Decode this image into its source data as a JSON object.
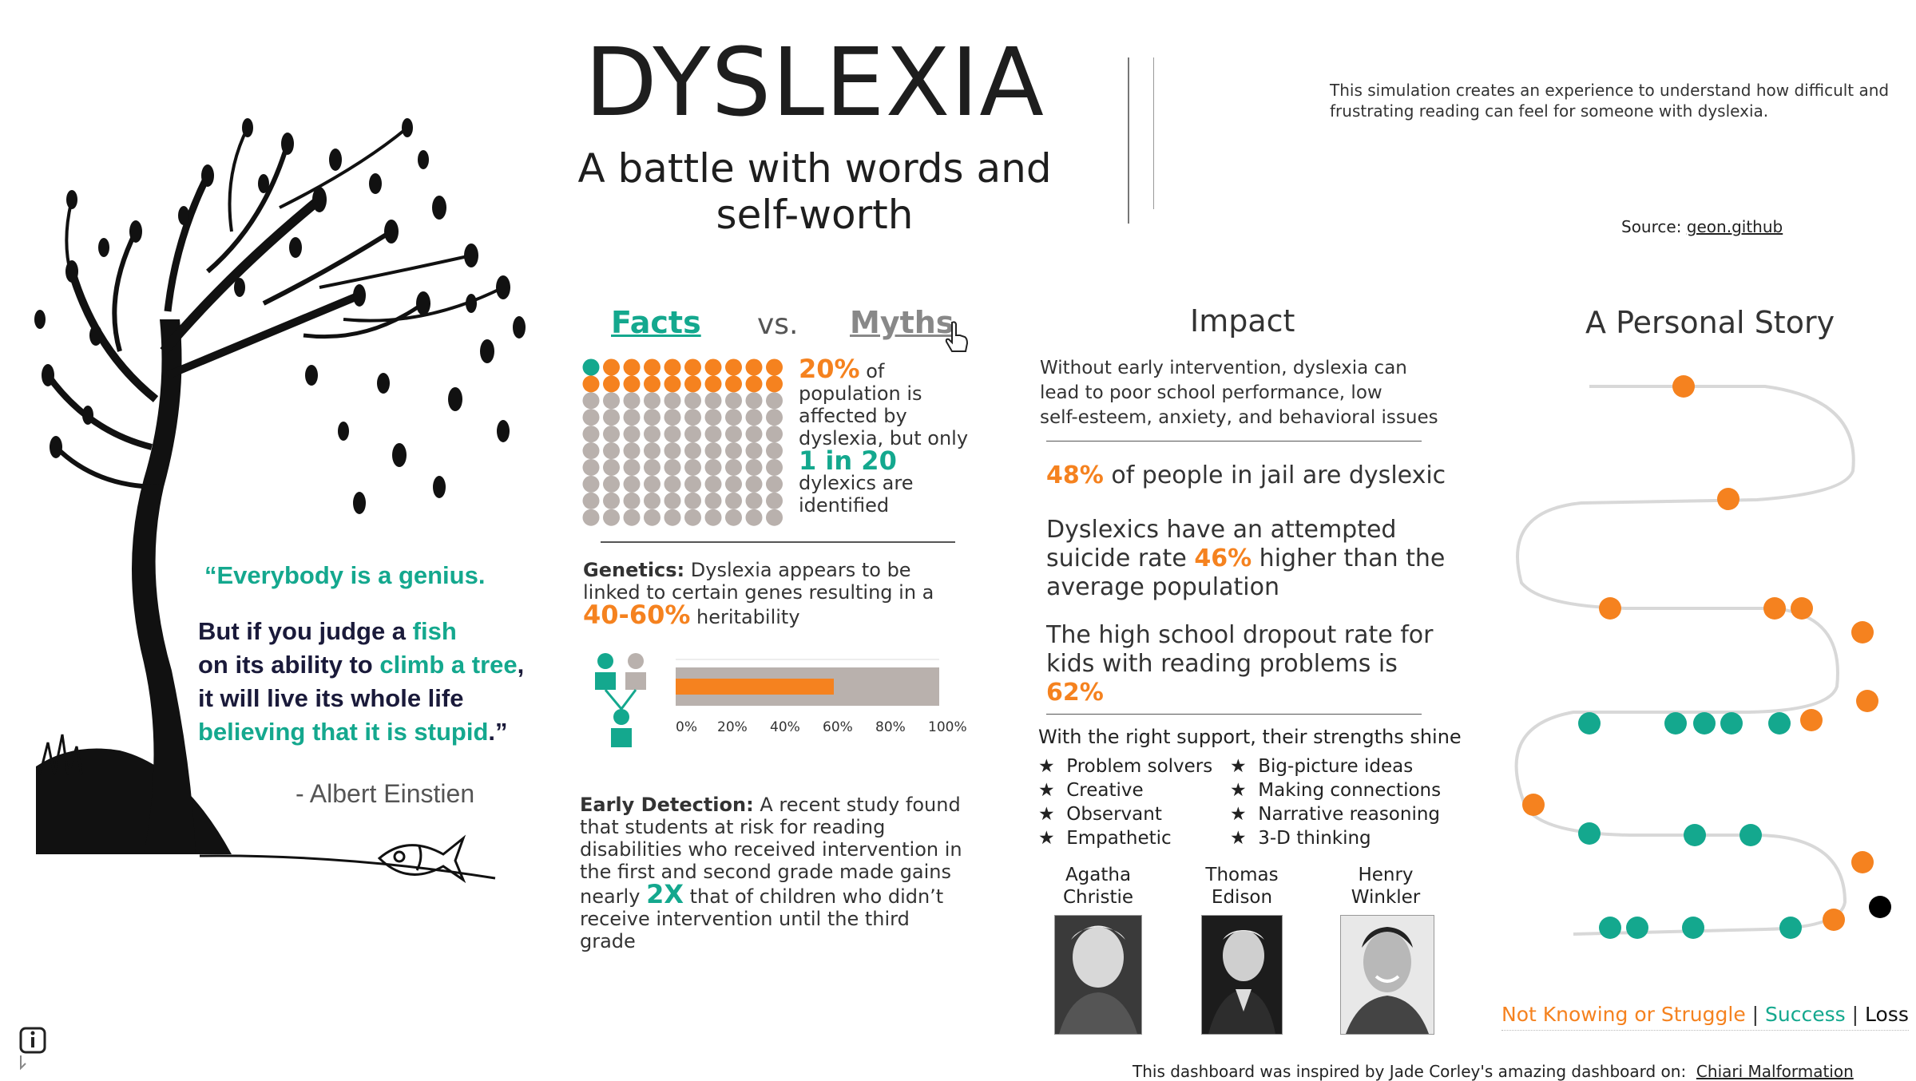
{
  "header": {
    "title": "DYSLEXIA",
    "subtitle_line1": "A battle with words and",
    "subtitle_line2": "self-worth",
    "description": "This simulation creates an experience to understand how difficult and frustrating reading can feel for someone with dyslexia.",
    "source_label": "Source:",
    "source_link": "geon.github"
  },
  "quote": {
    "line1": "“Everybody is a genius.",
    "line2a": "But if you judge a ",
    "line2b": "fish",
    "line3a": "on its ability to ",
    "line3b": "climb a tree",
    "line3c": ",",
    "line4": "it will live its whole life",
    "line5a": "believing that it is stupid",
    "line5b": ".”",
    "author": "- Albert Einstien"
  },
  "facts": {
    "tab_facts": "Facts",
    "vs": "vs.",
    "tab_myths": "Myths",
    "pct20": "20%",
    "of": " of",
    "stat_l1": "population is",
    "stat_l2": "affected by",
    "stat_l3": "dyslexia, but only",
    "one_in_20": "1 in 20",
    "stat_l4": "dylexics are",
    "stat_l5": "identified",
    "genetics_label": "Genetics:",
    "genetics_text1": " Dyslexia appears to be",
    "genetics_text2": "linked to certain genes resulting in a",
    "heritability_pct": "40-60%",
    "heritability_text": " heritability",
    "bar_ticks": [
      "0%",
      "20%",
      "40%",
      "60%",
      "80%",
      "100%"
    ],
    "heritability_value": 0.6,
    "early_label": "Early Detection:",
    "early_l1": " A recent study found",
    "early_l2": "that students at risk for reading",
    "early_l3": "disabilities who received intervention in",
    "early_l4": "the first and second grade made gains",
    "early_l5a": "nearly ",
    "early_2x": "2X",
    "early_l5b": " that of children who didn’t",
    "early_l6": "receive intervention until the third",
    "early_l7": "grade"
  },
  "impact": {
    "heading": "Impact",
    "intro_l1": "Without early intervention, dyslexia can",
    "intro_l2": "lead to poor school performance, low",
    "intro_l3": "self-esteem, anxiety, and behavioral issues",
    "jail_pct": "48%",
    "jail_text": " of people in jail are dyslexic",
    "suicide_l1": "Dyslexics have an attempted",
    "suicide_l2a": "suicide rate ",
    "suicide_pct": "46%",
    "suicide_l2b": " higher than the",
    "suicide_l3": "average population",
    "dropout_l1": "The high school dropout rate for",
    "dropout_l2": "kids with reading problems is",
    "dropout_pct": "62%",
    "strengths_heading": "With the right support, their strengths shine",
    "strengths_left": [
      "Problem solvers",
      "Creative",
      "Observant",
      "Empathetic"
    ],
    "strengths_right": [
      "Big-picture ideas",
      "Making connections",
      "Narrative reasoning",
      "3-D thinking"
    ],
    "people": [
      {
        "first": "Agatha",
        "last": "Christie"
      },
      {
        "first": "Thomas",
        "last": "Edison"
      },
      {
        "first": "Henry",
        "last": "Winkler"
      }
    ]
  },
  "story": {
    "heading": "A Personal Story",
    "legend_struggle": "Not Knowing or Struggle",
    "legend_sep1": " | ",
    "legend_success": "Success",
    "legend_sep2": " | ",
    "legend_loss": "Loss"
  },
  "footer": {
    "text": "This dashboard was inspired by Jade Corley's amazing dashboard on:",
    "link": "Chiari Malformation"
  },
  "colors": {
    "orange": "#f5821f",
    "teal": "#14a88e",
    "grey": "#b9b1ad",
    "black": "#000000"
  },
  "icons": [
    "info-icon",
    "hand-pointer-icon",
    "tree-icon",
    "fish-icon",
    "person-icon"
  ]
}
